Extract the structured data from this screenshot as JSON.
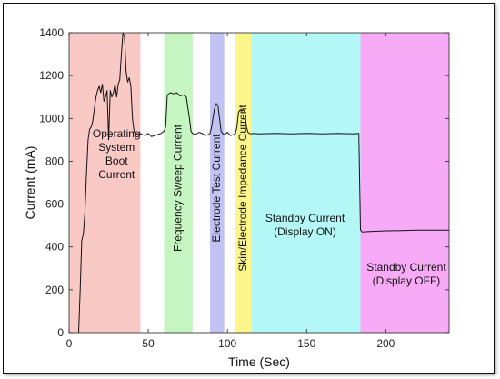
{
  "chart_data": {
    "type": "line",
    "title": "",
    "xlabel": "Time (Sec)",
    "ylabel": "Current (mA)",
    "xlim": [
      0,
      240
    ],
    "ylim": [
      0,
      1400
    ],
    "x_ticks": [
      0,
      50,
      100,
      150,
      200
    ],
    "y_ticks": [
      0,
      200,
      400,
      600,
      800,
      1000,
      1200,
      1400
    ],
    "x_tick_labels": [
      "0",
      "50",
      "100",
      "150",
      "200"
    ],
    "y_tick_labels": [
      "0",
      "200",
      "400",
      "600",
      "800",
      "1000",
      "1200",
      "1400"
    ],
    "grid": false,
    "regions": [
      {
        "x0": 0,
        "x1": 45,
        "color": "#f9c9c6",
        "label_lines": [
          "Operating",
          "System",
          "Boot",
          "Current"
        ],
        "orientation": "horizontal",
        "label_x": 30,
        "label_y": 830
      },
      {
        "x0": 60,
        "x1": 78,
        "color": "#c5f5c0",
        "label_lines": [
          "Frequency Sweep Current"
        ],
        "orientation": "vertical",
        "label_x": 69,
        "label_y": 0
      },
      {
        "x0": 89,
        "x1": 98,
        "color": "#c3c3f3",
        "label_lines": [
          "Electrode Test Current"
        ],
        "orientation": "vertical",
        "label_x": 93.5,
        "label_y": 0
      },
      {
        "x0": 105,
        "x1": 115,
        "color": "#fbf58a",
        "label_lines": [
          "Skin/Electrode Impedance Current"
        ],
        "orientation": "vertical",
        "label_x": 110,
        "label_y": 0
      },
      {
        "x0": 115,
        "x1": 184,
        "color": "#b3f7f7",
        "label_lines": [
          "Standby Current",
          "(Display ON)"
        ],
        "orientation": "horizontal",
        "label_x": 149,
        "label_y": 500
      },
      {
        "x0": 184,
        "x1": 240,
        "color": "#f7aaf5",
        "label_lines": [
          "Standby Current",
          "(Display OFF)"
        ],
        "orientation": "horizontal",
        "label_x": 213,
        "label_y": 270
      }
    ],
    "series": [
      {
        "color": "#111111",
        "x": [
          6,
          7,
          8,
          9,
          10,
          11,
          12,
          13,
          14,
          15,
          16,
          17,
          18,
          19,
          20,
          21,
          22,
          23,
          24,
          25,
          26,
          27,
          28,
          29,
          30,
          31,
          32,
          33,
          34,
          35,
          36,
          37,
          38,
          39,
          40,
          41,
          42,
          43,
          44,
          45,
          46,
          48,
          50,
          52,
          54,
          56,
          58,
          60,
          61,
          62,
          64,
          66,
          68,
          70,
          72,
          74,
          76,
          77,
          78,
          80,
          82,
          84,
          86,
          88,
          89,
          90,
          91,
          92,
          93,
          94,
          95,
          96,
          97,
          98,
          99,
          100,
          102,
          104,
          105,
          106,
          107,
          108,
          109,
          110,
          111,
          112,
          113,
          114,
          115,
          116,
          120,
          130,
          140,
          150,
          160,
          170,
          180,
          183,
          184,
          185,
          190,
          200,
          210,
          220,
          230,
          240
        ],
        "y": [
          0,
          200,
          430,
          460,
          560,
          750,
          900,
          950,
          960,
          990,
          1050,
          1100,
          1130,
          1150,
          1120,
          1160,
          1080,
          1100,
          1130,
          900,
          1130,
          1100,
          1120,
          1160,
          1100,
          1160,
          1180,
          1300,
          1400,
          1380,
          1220,
          1170,
          1190,
          1150,
          1000,
          940,
          925,
          930,
          920,
          930,
          925,
          920,
          930,
          915,
          920,
          925,
          930,
          940,
          960,
          1110,
          1120,
          1115,
          1120,
          1105,
          1110,
          1100,
          1000,
          940,
          930,
          925,
          935,
          930,
          920,
          925,
          930,
          960,
          1010,
          1050,
          1070,
          1060,
          1000,
          940,
          930,
          925,
          930,
          935,
          920,
          925,
          930,
          960,
          1030,
          1040,
          1035,
          1040,
          1030,
          960,
          935,
          930,
          928,
          930,
          928,
          930,
          928,
          930,
          928,
          930,
          928,
          930,
          480,
          470,
          472,
          475,
          476,
          478,
          478,
          478
        ]
      }
    ]
  }
}
